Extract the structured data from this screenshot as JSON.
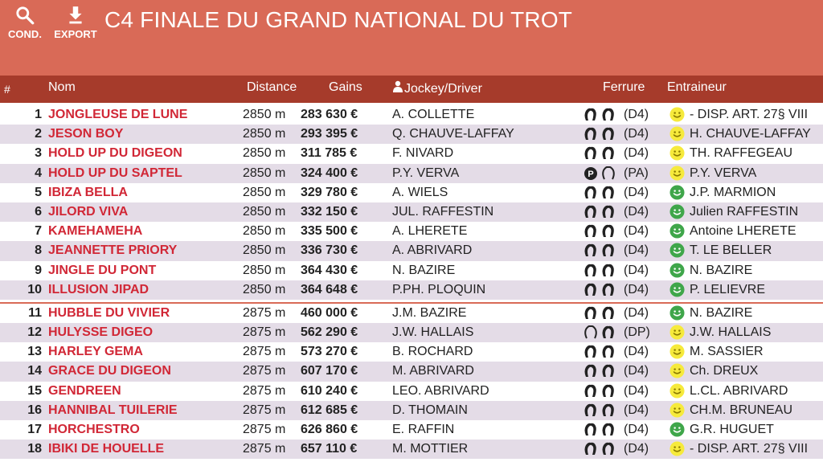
{
  "toolbar": {
    "cond_label": "COND.",
    "export_label": "EXPORT",
    "cond_icon": "search-icon",
    "export_icon": "download-icon"
  },
  "title": "C4 FINALE DU GRAND NATIONAL DU TROT",
  "colors": {
    "header": "#d96a57",
    "table_header": "#a63b2b",
    "name": "#d12736",
    "row_alt": "#e4dce7",
    "smile_yellow": "#f6ea3c",
    "smile_green": "#3fa64a"
  },
  "columns": {
    "num": "#",
    "nom": "Nom",
    "distance": "Distance",
    "gains": "Gains",
    "jockey": "Jockey/Driver",
    "ferrure": "Ferrure",
    "entraineur": "Entraineur"
  },
  "rows": [
    {
      "num": "1",
      "name": "JONGLEUSE DE LUNE",
      "distance": "2850 m",
      "gains": "283 630 €",
      "jockey": "A. COLLETTE",
      "shoes": "D4",
      "code": "(D4)",
      "mood": "yellow",
      "trainer": "- DISP. ART. 27§ VIII"
    },
    {
      "num": "2",
      "name": "JESON BOY",
      "distance": "2850 m",
      "gains": "293 395 €",
      "jockey": "Q. CHAUVE-LAFFAY",
      "shoes": "D4",
      "code": "(D4)",
      "mood": "yellow",
      "trainer": "H. CHAUVE-LAFFAY"
    },
    {
      "num": "3",
      "name": "HOLD UP DU DIGEON",
      "distance": "2850 m",
      "gains": "311 785 €",
      "jockey": "F. NIVARD",
      "shoes": "D4",
      "code": "(D4)",
      "mood": "yellow",
      "trainer": "TH. RAFFEGEAU"
    },
    {
      "num": "4",
      "name": "HOLD UP DU SAPTEL",
      "distance": "2850 m",
      "gains": "324 400 €",
      "jockey": "P.Y. VERVA",
      "shoes": "PA",
      "code": "(PA)",
      "mood": "yellow",
      "trainer": "P.Y. VERVA"
    },
    {
      "num": "5",
      "name": "IBIZA BELLA",
      "distance": "2850 m",
      "gains": "329 780 €",
      "jockey": "A. WIELS",
      "shoes": "D4",
      "code": "(D4)",
      "mood": "green",
      "trainer": "J.P. MARMION"
    },
    {
      "num": "6",
      "name": "JILORD VIVA",
      "distance": "2850 m",
      "gains": "332 150 €",
      "jockey": "JUL. RAFFESTIN",
      "shoes": "D4",
      "code": "(D4)",
      "mood": "green",
      "trainer": "Julien RAFFESTIN"
    },
    {
      "num": "7",
      "name": "KAMEHAMEHA",
      "distance": "2850 m",
      "gains": "335 500 €",
      "jockey": "A. LHERETE",
      "shoes": "D4",
      "code": "(D4)",
      "mood": "green",
      "trainer": "Antoine LHERETE"
    },
    {
      "num": "8",
      "name": "JEANNETTE PRIORY",
      "distance": "2850 m",
      "gains": "336 730 €",
      "jockey": "A. ABRIVARD",
      "shoes": "D4",
      "code": "(D4)",
      "mood": "green",
      "trainer": "T. LE BELLER"
    },
    {
      "num": "9",
      "name": "JINGLE DU PONT",
      "distance": "2850 m",
      "gains": "364 430 €",
      "jockey": "N. BAZIRE",
      "shoes": "D4",
      "code": "(D4)",
      "mood": "green",
      "trainer": "N. BAZIRE"
    },
    {
      "num": "10",
      "name": "ILLUSION JIPAD",
      "distance": "2850 m",
      "gains": "364 648 €",
      "jockey": "P.PH. PLOQUIN",
      "shoes": "D4",
      "code": "(D4)",
      "mood": "green",
      "trainer": "P. LELIEVRE"
    },
    {
      "num": "11",
      "name": "HUBBLE DU VIVIER",
      "distance": "2875 m",
      "gains": "460 000 €",
      "jockey": "J.M. BAZIRE",
      "shoes": "D4",
      "code": "(D4)",
      "mood": "green",
      "trainer": "N. BAZIRE",
      "separator": true
    },
    {
      "num": "12",
      "name": "HULYSSE DIGEO",
      "distance": "2875 m",
      "gains": "562 290 €",
      "jockey": "J.W. HALLAIS",
      "shoes": "DP",
      "code": "(DP)",
      "mood": "yellow",
      "trainer": "J.W. HALLAIS"
    },
    {
      "num": "13",
      "name": "HARLEY GEMA",
      "distance": "2875 m",
      "gains": "573 270 €",
      "jockey": "B. ROCHARD",
      "shoes": "D4",
      "code": "(D4)",
      "mood": "yellow",
      "trainer": "M. SASSIER"
    },
    {
      "num": "14",
      "name": "GRACE DU DIGEON",
      "distance": "2875 m",
      "gains": "607 170 €",
      "jockey": "M. ABRIVARD",
      "shoes": "D4",
      "code": "(D4)",
      "mood": "yellow",
      "trainer": "Ch. DREUX"
    },
    {
      "num": "15",
      "name": "GENDREEN",
      "distance": "2875 m",
      "gains": "610 240 €",
      "jockey": "LEO. ABRIVARD",
      "shoes": "D4",
      "code": "(D4)",
      "mood": "yellow",
      "trainer": "L.CL. ABRIVARD"
    },
    {
      "num": "16",
      "name": "HANNIBAL TUILERIE",
      "distance": "2875 m",
      "gains": "612 685 €",
      "jockey": "D. THOMAIN",
      "shoes": "D4",
      "code": "(D4)",
      "mood": "yellow",
      "trainer": "CH.M. BRUNEAU"
    },
    {
      "num": "17",
      "name": "HORCHESTRO",
      "distance": "2875 m",
      "gains": "626 860 €",
      "jockey": "E. RAFFIN",
      "shoes": "D4",
      "code": "(D4)",
      "mood": "green",
      "trainer": "G.R. HUGUET"
    },
    {
      "num": "18",
      "name": "IBIKI DE HOUELLE",
      "distance": "2875 m",
      "gains": "657 110 €",
      "jockey": "M. MOTTIER",
      "shoes": "D4",
      "code": "(D4)",
      "mood": "yellow",
      "trainer": "- DISP. ART. 27§ VIII"
    }
  ]
}
